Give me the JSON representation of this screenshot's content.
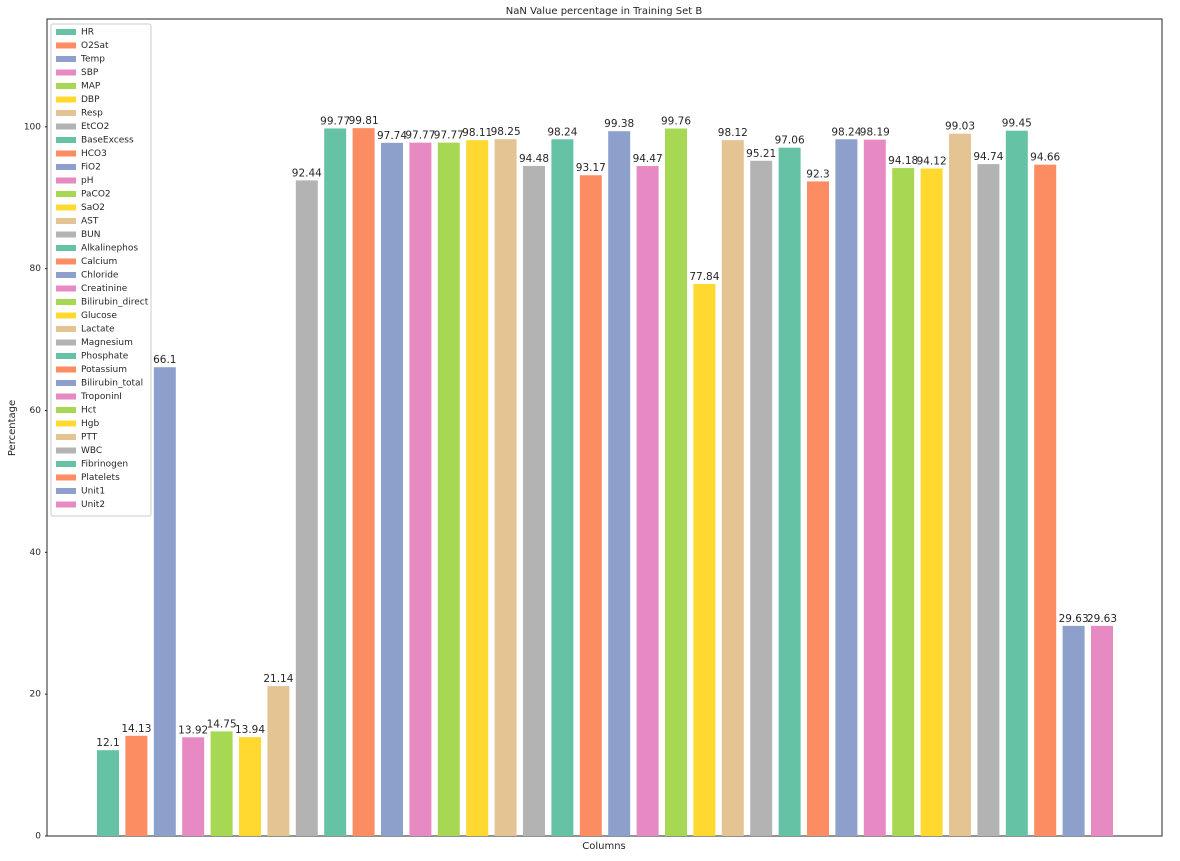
{
  "chart_data": {
    "type": "bar",
    "title": "NaN Value percentage in Training Set B",
    "x_label": "Columns",
    "y_label": "Percentage",
    "categories": [
      "HR",
      "O2Sat",
      "Temp",
      "SBP",
      "MAP",
      "DBP",
      "Resp",
      "EtCO2",
      "BaseExcess",
      "HCO3",
      "FiO2",
      "pH",
      "PaCO2",
      "SaO2",
      "AST",
      "BUN",
      "Alkalinephos",
      "Calcium",
      "Chloride",
      "Creatinine",
      "Bilirubin_direct",
      "Glucose",
      "Lactate",
      "Magnesium",
      "Phosphate",
      "Potassium",
      "Bilirubin_total",
      "TroponinI",
      "Hct",
      "Hgb",
      "PTT",
      "WBC",
      "Fibrinogen",
      "Platelets",
      "Unit1",
      "Unit2"
    ],
    "values": [
      12.1,
      14.13,
      66.1,
      13.92,
      14.75,
      13.94,
      21.14,
      92.44,
      99.77,
      99.81,
      97.74,
      97.77,
      97.77,
      98.11,
      98.25,
      94.48,
      98.24,
      93.17,
      99.38,
      94.47,
      99.76,
      77.84,
      98.12,
      95.21,
      97.06,
      92.3,
      98.24,
      98.19,
      94.18,
      94.12,
      99.03,
      94.74,
      99.45,
      94.66,
      29.63,
      29.63
    ],
    "colors": [
      "#66c2a5",
      "#fc8d62",
      "#8da0cb",
      "#e78ac3",
      "#a6d854",
      "#ffd92f",
      "#e5c494",
      "#b3b3b3",
      "#66c2a5",
      "#fc8d62",
      "#8da0cb",
      "#e78ac3",
      "#a6d854",
      "#ffd92f",
      "#e5c494",
      "#b3b3b3",
      "#66c2a5",
      "#fc8d62",
      "#8da0cb",
      "#e78ac3",
      "#a6d854",
      "#ffd92f",
      "#e5c494",
      "#b3b3b3",
      "#66c2a5",
      "#fc8d62",
      "#8da0cb",
      "#e78ac3",
      "#a6d854",
      "#ffd92f",
      "#e5c494",
      "#b3b3b3",
      "#66c2a5",
      "#fc8d62",
      "#8da0cb",
      "#e78ac3"
    ],
    "ylim": [
      0,
      115.2
    ],
    "yticks": [
      0,
      20,
      40,
      60,
      80,
      100
    ],
    "legend": "upper left"
  }
}
